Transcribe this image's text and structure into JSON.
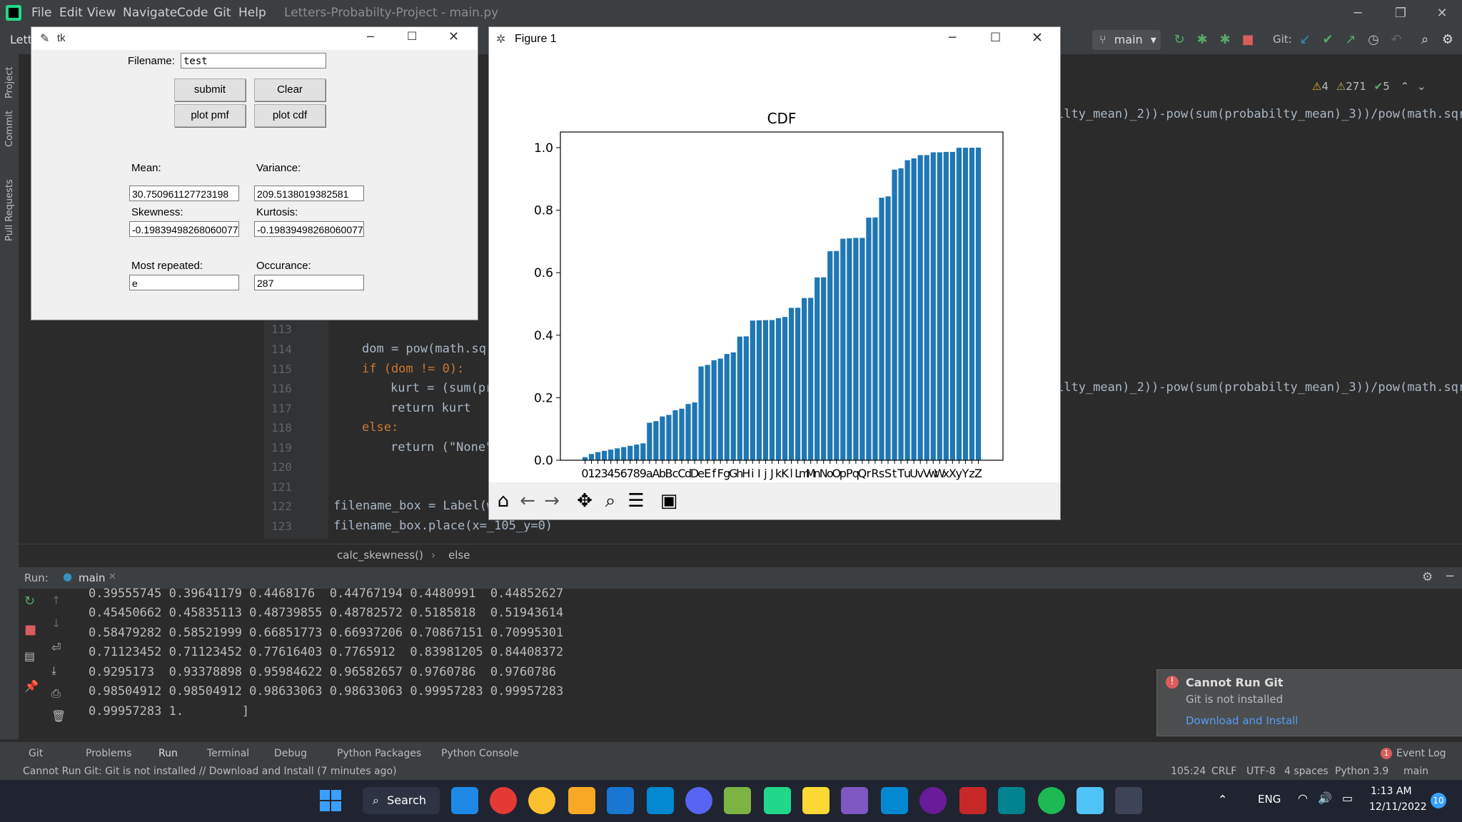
{
  "ide": {
    "menu": [
      "File",
      "Edit",
      "View",
      "Navigate",
      "Code",
      "Git",
      "Help"
    ],
    "title": "Letters-Probabilty-Project - main.py",
    "project_short": "Lett",
    "branch": "main",
    "git_label": "Git:",
    "inspections": {
      "warnings": "4",
      "weak": "271",
      "ok": "5"
    },
    "left_tabs": [
      "Project",
      "Commit",
      "Pull Requests"
    ],
    "line_numbers": [
      "113",
      "114",
      "115",
      "116",
      "117",
      "118",
      "119",
      "120",
      "121",
      "122",
      "123"
    ],
    "code": {
      "l114": "dom = pow(math.sqr",
      "l115": "if (dom != 0):",
      "l116": "kurt = (sum(pr",
      "l117": "return kurt",
      "l118": "else:",
      "l119": "return (\"None\"",
      "l122": "filename_box = Label(w",
      "l123": "filename_box.place(x=_105_y=0)",
      "right1": "ilty_mean)_2))-pow(sum(probabilty_mean)_3))/pow(math.sqrt",
      "right2": "ilty_mean)_2))-pow(sum(probabilty_mean)_3))/pow(math.sqr"
    },
    "breadcrumb": [
      "calc_skewness()",
      "else"
    ],
    "run": {
      "label": "Run:",
      "tab": "main",
      "output": [
        "0.39555745 0.39641179 0.4468176  0.44767194 0.4480991  0.44852627",
        "0.45450662 0.45835113 0.48739855 0.48782572 0.5185818  0.51943614",
        "0.58479282 0.58521999 0.66851773 0.66937206 0.70867151 0.70995301",
        "0.71123452 0.71123452 0.77616403 0.7765912  0.83981205 0.84408372",
        "0.9295173  0.93378898 0.95984622 0.96582657 0.9760786  0.9760786",
        "0.98504912 0.98504912 0.98633063 0.98633063 0.99957283 0.99957283",
        "0.99957283 1.        ]"
      ]
    },
    "tool_tabs": [
      "Git",
      "Problems",
      "Run",
      "Terminal",
      "Debug",
      "Python Packages",
      "Python Console"
    ],
    "event_log": "Event Log",
    "event_count": "1",
    "status": {
      "message": "Cannot Run Git: Git is not installed // Download and Install (7 minutes ago)",
      "position": "105:24",
      "line_sep": "CRLF",
      "encoding": "UTF-8",
      "indent": "4 spaces",
      "interpreter": "Python 3.9",
      "branch": "main"
    },
    "notification": {
      "title": "Cannot Run Git",
      "body": "Git is not installed",
      "link": "Download and Install"
    }
  },
  "tk": {
    "title": "tk",
    "filename_label": "Filename:",
    "filename_value": "test",
    "buttons": {
      "submit": "submit",
      "clear": "Clear",
      "pmf": "plot pmf",
      "cdf": "plot cdf"
    },
    "mean_label": "Mean:",
    "mean_value": "30.750961127723198",
    "variance_label": "Variance:",
    "variance_value": "209.5138019382581",
    "skewness_label": "Skewness:",
    "skewness_value": "-0.19839498268060077",
    "kurtosis_label": "Kurtosis:",
    "kurtosis_value": "-0.19839498268060077",
    "most_label": "Most repeated:",
    "most_value": "e",
    "occ_label": "Occurance:",
    "occ_value": "287"
  },
  "figure": {
    "title": "Figure 1",
    "tool_icons": [
      "home-icon",
      "back-icon",
      "forward-icon",
      "pan-icon",
      "zoom-icon",
      "configure-icon",
      "save-icon"
    ]
  },
  "chart_data": {
    "type": "bar",
    "title": "CDF",
    "xlabel": "",
    "ylabel": "",
    "ylim": [
      0,
      1.05
    ],
    "yticks": [
      "0.0",
      "0.2",
      "0.4",
      "0.6",
      "0.8",
      "1.0"
    ],
    "bar_color": "#1f77b4",
    "categories": [
      "0",
      "1",
      "2",
      "3",
      "4",
      "5",
      "6",
      "7",
      "8",
      "9",
      "a",
      "A",
      "b",
      "B",
      "c",
      "C",
      "d",
      "D",
      "e",
      "E",
      "f",
      "F",
      "g",
      "G",
      "h",
      "H",
      "i",
      "I",
      "j",
      "J",
      "k",
      "K",
      "l",
      "L",
      "m",
      "M",
      "n",
      "N",
      "o",
      "O",
      "p",
      "P",
      "q",
      "Q",
      "r",
      "R",
      "s",
      "S",
      "t",
      "T",
      "u",
      "U",
      "v",
      "V",
      "w",
      "W",
      "x",
      "X",
      "y",
      "Y",
      "z",
      "Z"
    ],
    "values": [
      0.01,
      0.02,
      0.026,
      0.03,
      0.034,
      0.038,
      0.042,
      0.046,
      0.05,
      0.054,
      0.12,
      0.125,
      0.14,
      0.145,
      0.16,
      0.165,
      0.18,
      0.185,
      0.3,
      0.305,
      0.32,
      0.325,
      0.34,
      0.345,
      0.39555745,
      0.39641179,
      0.4468176,
      0.44767194,
      0.4480991,
      0.44852627,
      0.45450662,
      0.45835113,
      0.48739855,
      0.48782572,
      0.5185818,
      0.51943614,
      0.58479282,
      0.58521999,
      0.66851773,
      0.66937206,
      0.70867151,
      0.70995301,
      0.71123452,
      0.71123452,
      0.77616403,
      0.7765912,
      0.83981205,
      0.84408372,
      0.9295173,
      0.93378898,
      0.95984622,
      0.96582657,
      0.9760786,
      0.9760786,
      0.98504912,
      0.98504912,
      0.98633063,
      0.98633063,
      0.99957283,
      0.99957283,
      0.99957283,
      1.0
    ],
    "xtick_text": "0123456789aAbBcCdDeEfFgGhHiIjJkKlLmMnNoOpPqQrRsStTuUvVwWxXyYzZ"
  },
  "taskbar": {
    "search": "Search",
    "lang": "ENG",
    "time": "1:13 AM",
    "date": "12/11/2022",
    "badge": "10"
  }
}
